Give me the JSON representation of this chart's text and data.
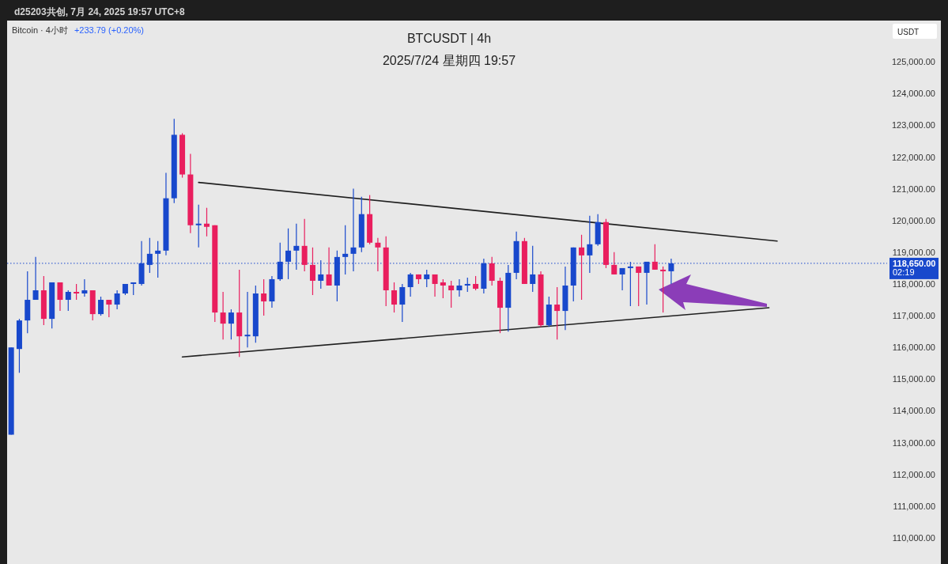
{
  "chart_data": {
    "type": "candlestick",
    "title": "BTCUSDT | 4h",
    "subtitle": "2025/7/24 星期四 19:57",
    "ylabel": "USDT",
    "annotations": [
      "d25203共创, 7月 24, 2025 19:57 UTC+8",
      "Bitcoin · 4小时",
      "+233.79 (+0.20%)"
    ],
    "categories": [
      null,
      null,
      null,
      null,
      null,
      null,
      null,
      null,
      null,
      null,
      null,
      null,
      null,
      null,
      null,
      null,
      null,
      null,
      null,
      null,
      null,
      null,
      null,
      null,
      null,
      null,
      null,
      null,
      null,
      null,
      null,
      null,
      null,
      null,
      null,
      null,
      null,
      null,
      null,
      null,
      null,
      null,
      null,
      null,
      null,
      null,
      null,
      null,
      null,
      null,
      null,
      null,
      null,
      null,
      null,
      null,
      null,
      null,
      null,
      null,
      null,
      null,
      null,
      null,
      null,
      null,
      null,
      null,
      null,
      null,
      null,
      null,
      null,
      null,
      null,
      null,
      null,
      null,
      null,
      null,
      null,
      null,
      null,
      null,
      null,
      null,
      null,
      null,
      null,
      null,
      null,
      null,
      null,
      null,
      null,
      null,
      null,
      null,
      null,
      null,
      null,
      null,
      null,
      null,
      null,
      null,
      null,
      null
    ],
    "ohlc": [
      [
        113250,
        116000,
        113250,
        116000
      ],
      [
        115950,
        116900,
        115200,
        116850
      ],
      [
        116850,
        118400,
        116450,
        117500
      ],
      [
        117500,
        118850,
        117500,
        117800
      ],
      [
        117800,
        118250,
        116700,
        116900
      ],
      [
        116900,
        118050,
        116600,
        118050
      ],
      [
        118050,
        118050,
        117150,
        117500
      ],
      [
        117500,
        117800,
        117150,
        117750
      ],
      [
        117750,
        118000,
        117500,
        117700
      ],
      [
        117700,
        118150,
        117600,
        117800
      ],
      [
        117800,
        117800,
        116850,
        117050
      ],
      [
        117050,
        117600,
        117000,
        117500
      ],
      [
        117500,
        117500,
        116950,
        117350
      ],
      [
        117350,
        117800,
        117200,
        117700
      ],
      [
        117700,
        118000,
        117650,
        118000
      ],
      [
        118000,
        118050,
        117650,
        118050
      ],
      [
        118000,
        119350,
        117950,
        118650
      ],
      [
        118600,
        119450,
        118350,
        118950
      ],
      [
        118950,
        119350,
        118200,
        119050
      ],
      [
        119050,
        121500,
        118900,
        120700
      ],
      [
        120700,
        123200,
        120550,
        122700
      ],
      [
        122700,
        122750,
        121350,
        121450
      ],
      [
        121450,
        122100,
        119600,
        119850
      ],
      [
        119850,
        120500,
        119150,
        119900
      ],
      [
        119900,
        120400,
        119500,
        119800
      ],
      [
        119850,
        119850,
        116800,
        117100
      ],
      [
        117100,
        117750,
        116250,
        116750
      ],
      [
        116750,
        117200,
        116250,
        117100
      ],
      [
        117100,
        118450,
        115700,
        116350
      ],
      [
        116350,
        117750,
        116000,
        116400
      ],
      [
        116350,
        117950,
        116150,
        117700
      ],
      [
        117700,
        118150,
        117000,
        117450
      ],
      [
        117450,
        118250,
        117250,
        118150
      ],
      [
        118150,
        119300,
        118100,
        118700
      ],
      [
        118700,
        119750,
        118150,
        119050
      ],
      [
        119050,
        119900,
        118450,
        119200
      ],
      [
        119200,
        120050,
        118400,
        118600
      ],
      [
        118600,
        119150,
        117650,
        118100
      ],
      [
        118100,
        118750,
        117850,
        118300
      ],
      [
        118300,
        119150,
        117950,
        117950
      ],
      [
        117950,
        119050,
        117450,
        118850
      ],
      [
        118850,
        119850,
        118300,
        118950
      ],
      [
        118950,
        121000,
        118400,
        119150
      ],
      [
        119150,
        120750,
        119000,
        120200
      ],
      [
        120200,
        120800,
        119250,
        119300
      ],
      [
        119300,
        119450,
        118400,
        119150
      ],
      [
        119150,
        119500,
        117300,
        117800
      ],
      [
        117800,
        118050,
        117100,
        117350
      ],
      [
        117350,
        118000,
        116800,
        117900
      ],
      [
        117900,
        118350,
        117600,
        118300
      ],
      [
        118300,
        118300,
        118000,
        118150
      ],
      [
        118150,
        118450,
        117900,
        118300
      ],
      [
        118300,
        118300,
        117600,
        118000
      ],
      [
        118050,
        118150,
        117550,
        117950
      ],
      [
        117950,
        118100,
        117250,
        117800
      ],
      [
        117800,
        118150,
        117600,
        117950
      ],
      [
        117950,
        118200,
        117750,
        118000
      ],
      [
        118000,
        118250,
        117800,
        117850
      ],
      [
        117850,
        118800,
        117700,
        118650
      ],
      [
        118650,
        118850,
        117950,
        118100
      ],
      [
        118100,
        118200,
        116450,
        117250
      ],
      [
        117250,
        118600,
        116500,
        118350
      ],
      [
        118350,
        119650,
        118150,
        119350
      ],
      [
        119350,
        119450,
        118000,
        118000
      ],
      [
        118000,
        119200,
        117750,
        118300
      ],
      [
        118300,
        118400,
        116650,
        116700
      ],
      [
        116700,
        117600,
        116650,
        117350
      ],
      [
        117350,
        117900,
        116250,
        117150
      ],
      [
        117150,
        118550,
        116550,
        117950
      ],
      [
        117950,
        119150,
        117450,
        119150
      ],
      [
        119150,
        119550,
        117500,
        118900
      ],
      [
        118900,
        120150,
        118350,
        119250
      ],
      [
        119250,
        120200,
        119200,
        119950
      ],
      [
        119950,
        120050,
        118500,
        118600
      ],
      [
        118600,
        119000,
        118300,
        118300
      ],
      [
        118300,
        118500,
        117800,
        118500
      ],
      [
        118500,
        118700,
        117300,
        118550
      ],
      [
        118550,
        118550,
        117300,
        118350
      ],
      [
        118350,
        118700,
        117350,
        118700
      ],
      [
        118700,
        119250,
        118450,
        118450
      ],
      [
        118450,
        118550,
        117100,
        118400
      ],
      [
        118400,
        118800,
        118000,
        118650
      ],
      null,
      null,
      null,
      null,
      null,
      null,
      null,
      null,
      null,
      null,
      null,
      null,
      null,
      null,
      null,
      null,
      null,
      null,
      null,
      null,
      null,
      null,
      null,
      null,
      null,
      null
    ],
    "colors": [
      "#1848cc",
      "#1848cc",
      "#1848cc",
      "#1848cc",
      "#e91e5e",
      "#1848cc",
      "#e91e5e",
      "#1848cc",
      "#e91e5e",
      "#1848cc",
      "#e91e5e",
      "#1848cc",
      "#e91e5e",
      "#1848cc",
      "#1848cc",
      "#1848cc",
      "#1848cc",
      "#1848cc",
      "#1848cc",
      "#1848cc",
      "#1848cc",
      "#e91e5e",
      "#e91e5e",
      "#1848cc",
      "#e91e5e",
      "#e91e5e",
      "#e91e5e",
      "#1848cc",
      "#e91e5e",
      "#1848cc",
      "#1848cc",
      "#e91e5e",
      "#1848cc",
      "#1848cc",
      "#1848cc",
      "#1848cc",
      "#e91e5e",
      "#e91e5e",
      "#1848cc",
      "#e91e5e",
      "#1848cc",
      "#1848cc",
      "#1848cc",
      "#1848cc",
      "#e91e5e",
      "#e91e5e",
      "#e91e5e",
      "#e91e5e",
      "#1848cc",
      "#1848cc",
      "#e91e5e",
      "#1848cc",
      "#e91e5e",
      "#e91e5e",
      "#e91e5e",
      "#1848cc",
      "#1848cc",
      "#e91e5e",
      "#1848cc",
      "#e91e5e",
      "#e91e5e",
      "#1848cc",
      "#1848cc",
      "#e91e5e",
      "#1848cc",
      "#e91e5e",
      "#1848cc",
      "#e91e5e",
      "#1848cc",
      "#1848cc",
      "#e91e5e",
      "#1848cc",
      "#1848cc",
      "#e91e5e",
      "#e91e5e",
      "#1848cc",
      "#1848cc",
      "#e91e5e",
      "#1848cc",
      "#e91e5e",
      "#e91e5e",
      "#1848cc",
      null,
      null,
      null,
      null,
      null,
      null,
      null,
      null,
      null,
      null,
      null,
      null,
      null,
      null,
      null,
      null,
      null,
      null,
      null,
      null,
      null,
      null,
      null,
      null,
      null,
      null
    ],
    "series": [
      {
        "type": "line",
        "color": "#1f1f1f",
        "values": [
          null,
          null,
          null,
          null,
          null,
          null,
          null,
          null,
          null,
          null,
          null,
          null,
          null,
          null,
          null,
          null,
          null,
          null,
          null,
          null,
          null,
          null,
          null,
          121200,
          null,
          null,
          null,
          null,
          null,
          null,
          null,
          null,
          null,
          null,
          null,
          null,
          null,
          null,
          null,
          null,
          null,
          null,
          null,
          null,
          null,
          null,
          null,
          null,
          null,
          null,
          null,
          null,
          null,
          null,
          null,
          null,
          null,
          null,
          null,
          null,
          null,
          null,
          null,
          null,
          null,
          null,
          null,
          null,
          null,
          null,
          null,
          null,
          null,
          null,
          null,
          null,
          null,
          null,
          null,
          null,
          null,
          null,
          null,
          null,
          null,
          null,
          null,
          null,
          null,
          null,
          null,
          null,
          null,
          null,
          119350,
          null,
          null,
          null,
          null,
          null,
          null,
          null,
          null,
          null,
          null,
          null,
          null,
          null
        ]
      },
      {
        "type": "line",
        "color": "#1f1f1f",
        "values": [
          null,
          null,
          null,
          null,
          null,
          null,
          null,
          null,
          null,
          null,
          null,
          null,
          null,
          null,
          null,
          null,
          null,
          null,
          null,
          null,
          null,
          115700,
          null,
          null,
          null,
          null,
          null,
          null,
          null,
          null,
          null,
          null,
          null,
          null,
          null,
          null,
          null,
          null,
          null,
          null,
          null,
          null,
          null,
          null,
          null,
          null,
          null,
          null,
          null,
          null,
          null,
          null,
          null,
          null,
          null,
          null,
          null,
          null,
          null,
          null,
          null,
          null,
          null,
          null,
          null,
          null,
          null,
          null,
          null,
          null,
          null,
          null,
          null,
          null,
          null,
          null,
          null,
          null,
          null,
          null,
          null,
          null,
          null,
          null,
          null,
          null,
          null,
          null,
          null,
          null,
          null,
          null,
          null,
          117250,
          null,
          null,
          null,
          null,
          null,
          null,
          null,
          null,
          null,
          null,
          null,
          null,
          null,
          null
        ]
      }
    ],
    "ylim": [
      109175,
      126300
    ],
    "yticks": [
      {
        "value": 110000,
        "label": "110,000.00"
      },
      {
        "value": 111000,
        "label": "111,000.00"
      },
      {
        "value": 112000,
        "label": "112,000.00"
      },
      {
        "value": 113000,
        "label": "113,000.00"
      },
      {
        "value": 114000,
        "label": "114,000.00"
      },
      {
        "value": 115000,
        "label": "115,000.00"
      },
      {
        "value": 116000,
        "label": "116,000.00"
      },
      {
        "value": 117000,
        "label": "117,000.00"
      },
      {
        "value": 118000,
        "label": "118,000.00"
      },
      {
        "value": 119000,
        "label": "119,000.00"
      },
      {
        "value": 120000,
        "label": "120,000.00"
      },
      {
        "value": 121000,
        "label": "121,000.00"
      },
      {
        "value": 122000,
        "label": "122,000.00"
      },
      {
        "value": 123000,
        "label": "123,000.00"
      },
      {
        "value": 124000,
        "label": "124,000.00"
      },
      {
        "value": 125000,
        "label": "125,000.00"
      }
    ],
    "ref_lines": [
      {
        "axis": "y",
        "value": 118650,
        "label": "118,650.00\n02:19",
        "color": "#1848cc",
        "line_style": "dotted"
      }
    ],
    "tick_labels": "y",
    "grid": false
  }
}
